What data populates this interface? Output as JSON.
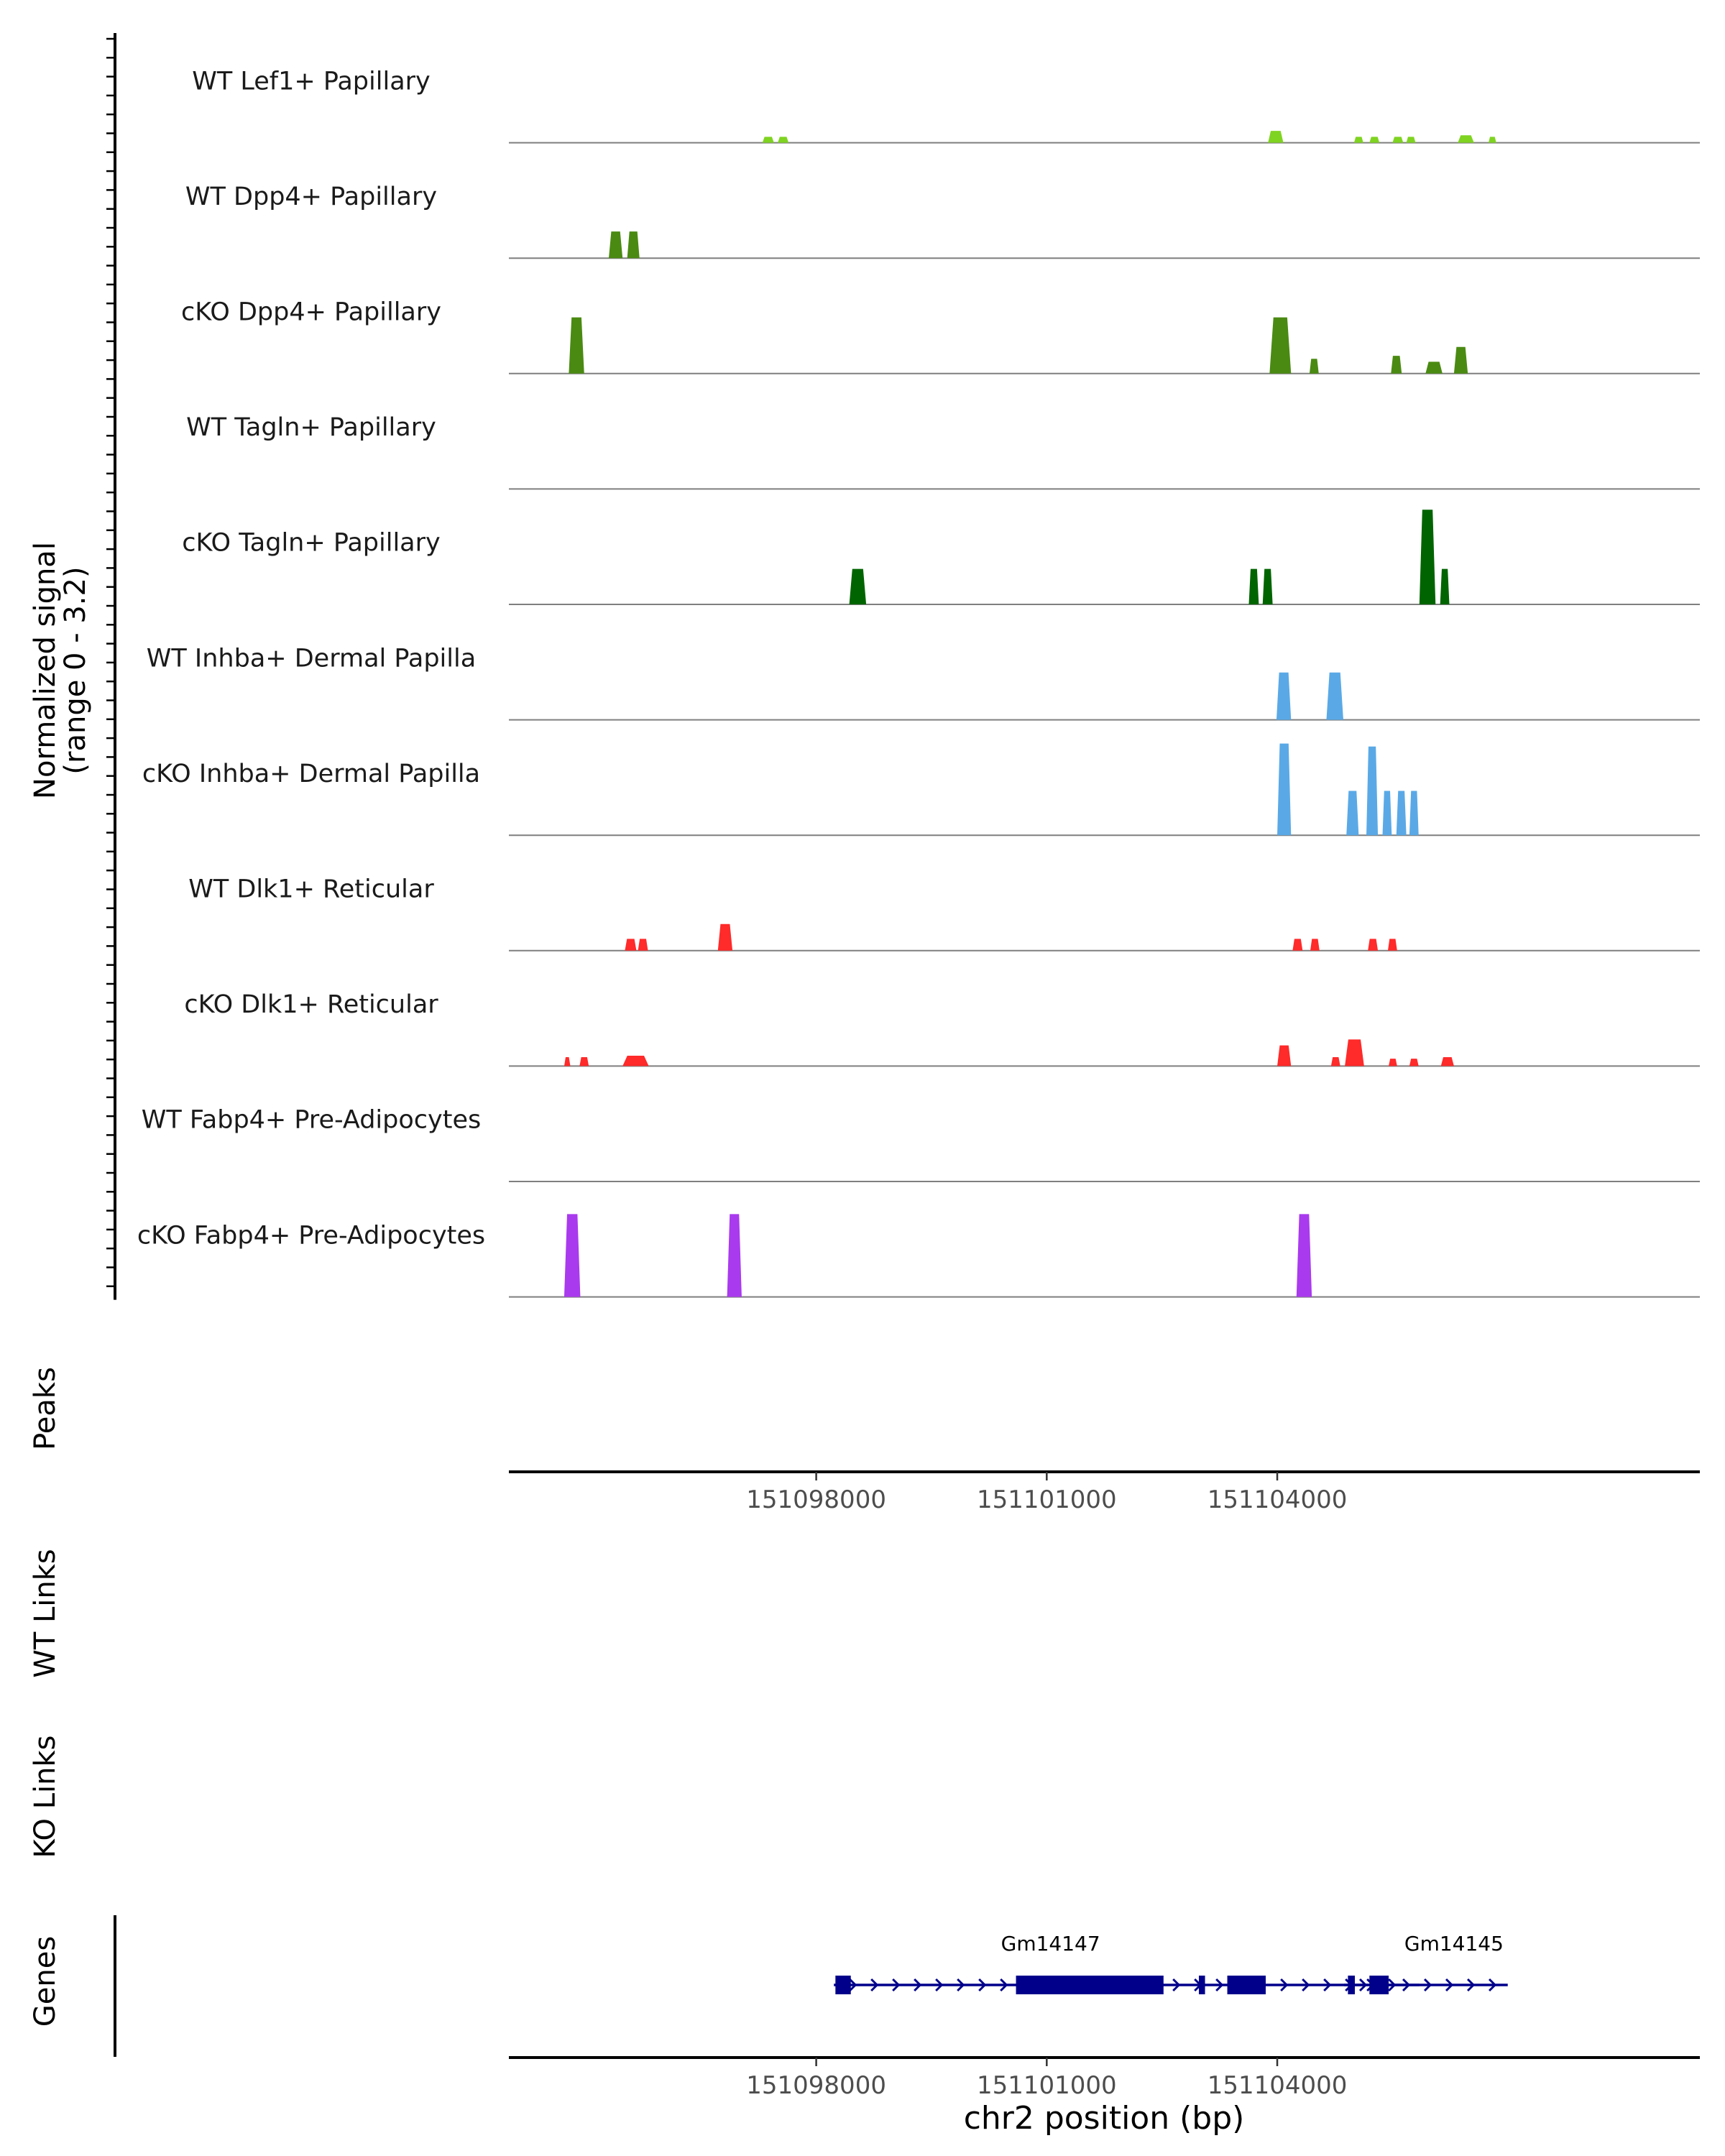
{
  "chart_data": {
    "type": "area",
    "chromosome": "chr2",
    "xlim": [
      151094000,
      151109500
    ],
    "ylabel_line1": "Normalized signal",
    "ylabel_line2": "(range 0 - 3.2)",
    "ylim": [
      0,
      3.2
    ],
    "xlabel": "chr2 position (bp)",
    "xticks": [
      151098000,
      151101000,
      151104000
    ],
    "xtick_labels": [
      "151098000",
      "151101000",
      "151104000"
    ],
    "tracks": [
      {
        "name": "WT Lef1+ Papillary",
        "color": "#7FD321",
        "peaks": [
          [
            151097300,
            151097450,
            0.2
          ],
          [
            151097500,
            151097640,
            0.2
          ],
          [
            151103880,
            151104080,
            0.4
          ],
          [
            151105000,
            151105120,
            0.2
          ],
          [
            151105200,
            151105330,
            0.2
          ],
          [
            151105500,
            151105640,
            0.2
          ],
          [
            151105680,
            151105800,
            0.2
          ],
          [
            151106350,
            151106560,
            0.25
          ],
          [
            151106750,
            151106850,
            0.2
          ]
        ]
      },
      {
        "name": "WT Dpp4+ Papillary",
        "color": "#4A8A12",
        "peaks": [
          [
            151095300,
            151095480,
            0.9
          ],
          [
            151095540,
            151095700,
            0.9
          ]
        ]
      },
      {
        "name": "cKO Dpp4+ Papillary",
        "color": "#4A8A12",
        "peaks": [
          [
            151094780,
            151094980,
            1.9
          ],
          [
            151103900,
            151104180,
            1.9
          ],
          [
            151104420,
            151104540,
            0.5
          ],
          [
            151105480,
            151105620,
            0.6
          ],
          [
            151105930,
            151106150,
            0.4
          ],
          [
            151106300,
            151106480,
            0.9
          ]
        ]
      },
      {
        "name": "WT Tagln+ Papillary",
        "color": "#006400",
        "peaks": []
      },
      {
        "name": "cKO Tagln+ Papillary",
        "color": "#006400",
        "peaks": [
          [
            151098430,
            151098650,
            1.2
          ],
          [
            151103630,
            151103760,
            1.2
          ],
          [
            151103810,
            151103940,
            1.2
          ],
          [
            151105850,
            151106060,
            3.2
          ],
          [
            151106120,
            151106240,
            1.2
          ]
        ]
      },
      {
        "name": "WT Inhba+ Dermal Papilla",
        "color": "#5AA9E6",
        "peaks": [
          [
            151103990,
            151104180,
            1.6
          ],
          [
            151104640,
            151104860,
            1.6
          ]
        ]
      },
      {
        "name": "cKO Inhba+ Dermal Papilla",
        "color": "#5AA9E6",
        "peaks": [
          [
            151104000,
            151104180,
            3.1
          ],
          [
            151104900,
            151105060,
            1.5
          ],
          [
            151105160,
            151105310,
            3.0
          ],
          [
            151105370,
            151105490,
            1.5
          ],
          [
            151105550,
            151105680,
            1.5
          ],
          [
            151105720,
            151105840,
            1.5
          ]
        ]
      },
      {
        "name": "WT Dlk1+ Reticular",
        "color": "#FF2A2A",
        "peaks": [
          [
            151095510,
            151095660,
            0.4
          ],
          [
            151095680,
            151095810,
            0.4
          ],
          [
            151096720,
            151096910,
            0.9
          ],
          [
            151104200,
            151104330,
            0.4
          ],
          [
            151104430,
            151104550,
            0.4
          ],
          [
            151105180,
            151105310,
            0.4
          ],
          [
            151105440,
            151105560,
            0.4
          ]
        ]
      },
      {
        "name": "cKO Dlk1+ Reticular",
        "color": "#FF2A2A",
        "peaks": [
          [
            151094720,
            151094800,
            0.3
          ],
          [
            151094920,
            151095040,
            0.3
          ],
          [
            151095480,
            151095820,
            0.35
          ],
          [
            151104000,
            151104180,
            0.7
          ],
          [
            151104700,
            151104820,
            0.3
          ],
          [
            151104880,
            151105130,
            0.9
          ],
          [
            151105450,
            151105560,
            0.25
          ],
          [
            151105720,
            151105840,
            0.25
          ],
          [
            151106130,
            151106300,
            0.3
          ]
        ]
      },
      {
        "name": "WT Fabp4+ Pre-Adipocytes",
        "color": "#A93AEE",
        "peaks": []
      },
      {
        "name": "cKO Fabp4+ Pre-Adipocytes",
        "color": "#A93AEE",
        "peaks": [
          [
            151094720,
            151094930,
            2.8
          ],
          [
            151096840,
            151097030,
            2.8
          ],
          [
            151104250,
            151104450,
            2.8
          ]
        ]
      }
    ],
    "peaks_track": {
      "label": "Peaks"
    },
    "links_tracks": [
      {
        "label": "WT Links"
      },
      {
        "label": "KO Links"
      }
    ],
    "genes_track": {
      "label": "Genes",
      "color": "#00008B",
      "genes": [
        {
          "name": "Gm14147",
          "start": 151098230,
          "end": 151105850,
          "exons": [
            [
              151098250,
              151098450
            ],
            [
              151100600,
              151102520
            ],
            [
              151102980,
              151103060
            ],
            [
              151103350,
              151103850
            ]
          ]
        },
        {
          "name": "Gm14145",
          "start": 151104870,
          "end": 151107000,
          "exons": [
            [
              151104920,
              151105010
            ],
            [
              151105200,
              151105450
            ]
          ]
        }
      ]
    }
  }
}
